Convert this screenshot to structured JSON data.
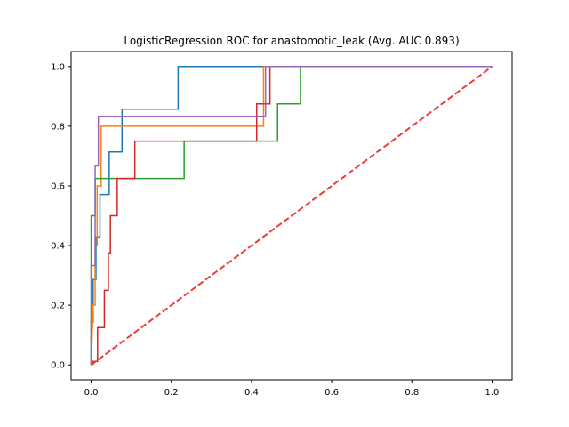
{
  "chart_data": {
    "type": "line",
    "title": "LogisticRegression ROC for anastomotic_leak (Avg. AUC 0.893)",
    "xlabel": "",
    "ylabel": "",
    "xlim": [
      -0.05,
      1.05
    ],
    "ylim": [
      -0.05,
      1.05
    ],
    "xticks": [
      0.0,
      0.2,
      0.4,
      0.6,
      0.8,
      1.0
    ],
    "yticks": [
      0.0,
      0.2,
      0.4,
      0.6,
      0.8,
      1.0
    ],
    "xtick_labels": [
      "0.0",
      "0.2",
      "0.4",
      "0.6",
      "0.8",
      "1.0"
    ],
    "ytick_labels": [
      "0.0",
      "0.2",
      "0.4",
      "0.6",
      "0.8",
      "1.0"
    ],
    "grid": false,
    "legend": "none",
    "series": [
      {
        "color": "#1f77b4",
        "points": [
          [
            0,
            0
          ],
          [
            0,
            0.143
          ],
          [
            0.005,
            0.143
          ],
          [
            0.005,
            0.286
          ],
          [
            0.012,
            0.286
          ],
          [
            0.012,
            0.429
          ],
          [
            0.022,
            0.429
          ],
          [
            0.022,
            0.571
          ],
          [
            0.045,
            0.571
          ],
          [
            0.045,
            0.714
          ],
          [
            0.077,
            0.714
          ],
          [
            0.077,
            0.857
          ],
          [
            0.217,
            0.857
          ],
          [
            0.217,
            1.0
          ],
          [
            1.0,
            1.0
          ]
        ]
      },
      {
        "color": "#ff7f0e",
        "points": [
          [
            0,
            0
          ],
          [
            0.005,
            0.2
          ],
          [
            0.01,
            0.2
          ],
          [
            0.01,
            0.4
          ],
          [
            0.015,
            0.4
          ],
          [
            0.015,
            0.6
          ],
          [
            0.025,
            0.6
          ],
          [
            0.025,
            0.8
          ],
          [
            0.43,
            0.8
          ],
          [
            0.43,
            1.0
          ],
          [
            1.0,
            1.0
          ]
        ]
      },
      {
        "color": "#2ca02c",
        "points": [
          [
            0,
            0
          ],
          [
            0,
            0.5
          ],
          [
            0.01,
            0.5
          ],
          [
            0.01,
            0.625
          ],
          [
            0.232,
            0.625
          ],
          [
            0.232,
            0.75
          ],
          [
            0.465,
            0.75
          ],
          [
            0.465,
            0.875
          ],
          [
            0.522,
            0.875
          ],
          [
            0.522,
            1.0
          ],
          [
            1.0,
            1.0
          ]
        ]
      },
      {
        "color": "#d62728",
        "points": [
          [
            0.005,
            0
          ],
          [
            0.005,
            0.012
          ],
          [
            0.016,
            0.012
          ],
          [
            0.016,
            0.125
          ],
          [
            0.033,
            0.125
          ],
          [
            0.033,
            0.25
          ],
          [
            0.043,
            0.25
          ],
          [
            0.043,
            0.375
          ],
          [
            0.048,
            0.375
          ],
          [
            0.048,
            0.5
          ],
          [
            0.065,
            0.5
          ],
          [
            0.065,
            0.625
          ],
          [
            0.109,
            0.625
          ],
          [
            0.109,
            0.75
          ],
          [
            0.413,
            0.75
          ],
          [
            0.413,
            0.875
          ],
          [
            0.446,
            0.875
          ],
          [
            0.446,
            1.0
          ],
          [
            1.0,
            1.0
          ]
        ]
      },
      {
        "color": "#9467bd",
        "points": [
          [
            0,
            0
          ],
          [
            0,
            0.333
          ],
          [
            0.01,
            0.333
          ],
          [
            0.01,
            0.667
          ],
          [
            0.018,
            0.667
          ],
          [
            0.018,
            0.833
          ],
          [
            0.435,
            0.833
          ],
          [
            0.435,
            1.0
          ],
          [
            1.0,
            1.0
          ]
        ]
      }
    ],
    "reference_line": {
      "color": "#f03a3a",
      "style": "dashed",
      "points": [
        [
          0,
          0
        ],
        [
          1,
          1
        ]
      ]
    }
  }
}
